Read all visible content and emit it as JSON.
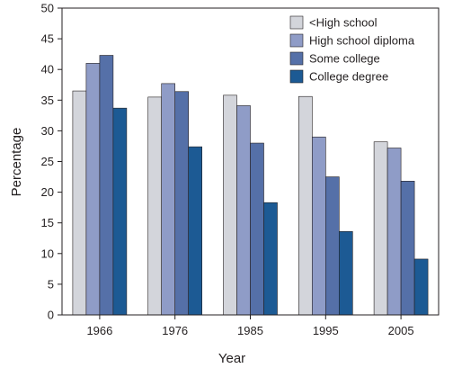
{
  "chart_data": {
    "type": "bar",
    "categories": [
      "1966",
      "1976",
      "1985",
      "1995",
      "2005"
    ],
    "series": [
      {
        "name": "<High school",
        "color": "#d3d5db",
        "values": [
          36.5,
          35.5,
          35.8,
          35.6,
          28.2
        ]
      },
      {
        "name": "High school diploma",
        "color": "#8f9cc7",
        "values": [
          41.0,
          37.7,
          34.1,
          29.0,
          27.2
        ]
      },
      {
        "name": "Some college",
        "color": "#5570a8",
        "values": [
          42.3,
          36.4,
          28.0,
          22.5,
          21.8
        ]
      },
      {
        "name": "College degree",
        "color": "#1c5a94",
        "values": [
          33.7,
          27.4,
          18.3,
          13.6,
          9.1
        ]
      }
    ],
    "xlabel": "Year",
    "ylabel": "Percentage",
    "ylim": [
      0,
      50
    ],
    "yticks": [
      0,
      5,
      10,
      15,
      20,
      25,
      30,
      35,
      40,
      45,
      50
    ],
    "grid": false,
    "legend_position": "top-right"
  }
}
